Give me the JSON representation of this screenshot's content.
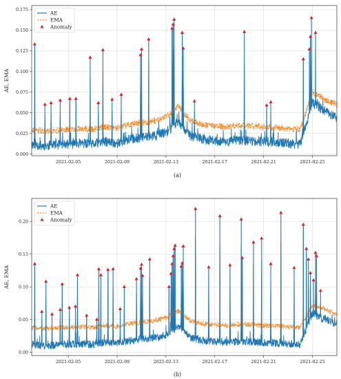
{
  "chart_data": [
    {
      "type": "line",
      "caption": "(a)",
      "ylabel": "AE, EMA",
      "xlabel": "",
      "xlim": [
        "2021-02-02",
        "2021-02-27"
      ],
      "ylim": [
        -0.002,
        0.18
      ],
      "yticks": [
        0.0,
        0.025,
        0.05,
        0.075,
        0.1,
        0.125,
        0.15,
        0.175
      ],
      "ytick_labels": [
        "0.000",
        "0.025",
        "0.050",
        "0.075",
        "0.100",
        "0.125",
        "0.150",
        "0.175"
      ],
      "xticks": [
        "2021-02-05",
        "2021-02-09",
        "2021-02-13",
        "2021-02-17",
        "2021-02-21",
        "2021-02-25"
      ],
      "grid": true,
      "legend": "top-left",
      "colors": {
        "AE": "#1f77b4",
        "EMA": "#ff7f0e",
        "Anomaly": "#d62728"
      },
      "series": [
        {
          "name": "AE",
          "style": "solid",
          "x": [
            "2021-02-02",
            "2021-02-03",
            "2021-02-04",
            "2021-02-05",
            "2021-02-06",
            "2021-02-07",
            "2021-02-08",
            "2021-02-09",
            "2021-02-10",
            "2021-02-11",
            "2021-02-12",
            "2021-02-13",
            "2021-02-14",
            "2021-02-15",
            "2021-02-16",
            "2021-02-17",
            "2021-02-18",
            "2021-02-19",
            "2021-02-20",
            "2021-02-21",
            "2021-02-22",
            "2021-02-23",
            "2021-02-24",
            "2021-02-25",
            "2021-02-26",
            "2021-02-27"
          ],
          "y": [
            0.012,
            0.01,
            0.011,
            0.012,
            0.013,
            0.012,
            0.015,
            0.013,
            0.018,
            0.02,
            0.022,
            0.026,
            0.04,
            0.022,
            0.018,
            0.016,
            0.015,
            0.017,
            0.016,
            0.015,
            0.014,
            0.013,
            0.012,
            0.062,
            0.052,
            0.044
          ]
        },
        {
          "name": "EMA",
          "style": "dashed",
          "x": [
            "2021-02-02",
            "2021-02-03",
            "2021-02-04",
            "2021-02-05",
            "2021-02-06",
            "2021-02-07",
            "2021-02-08",
            "2021-02-09",
            "2021-02-10",
            "2021-02-11",
            "2021-02-12",
            "2021-02-13",
            "2021-02-14",
            "2021-02-15",
            "2021-02-16",
            "2021-02-17",
            "2021-02-18",
            "2021-02-19",
            "2021-02-20",
            "2021-02-21",
            "2021-02-22",
            "2021-02-23",
            "2021-02-24",
            "2021-02-25",
            "2021-02-26",
            "2021-02-27"
          ],
          "y": [
            0.03,
            0.028,
            0.029,
            0.03,
            0.031,
            0.03,
            0.033,
            0.031,
            0.036,
            0.038,
            0.04,
            0.045,
            0.058,
            0.04,
            0.036,
            0.034,
            0.033,
            0.035,
            0.034,
            0.033,
            0.032,
            0.031,
            0.03,
            0.075,
            0.066,
            0.06
          ]
        },
        {
          "name": "Anomaly",
          "style": "marker",
          "points": [
            {
              "x": "2021-02-02 06:00",
              "y": 0.133
            },
            {
              "x": "2021-02-03 02:00",
              "y": 0.06
            },
            {
              "x": "2021-02-03 14:00",
              "y": 0.062
            },
            {
              "x": "2021-02-04 08:00",
              "y": 0.065
            },
            {
              "x": "2021-02-05 03:00",
              "y": 0.067
            },
            {
              "x": "2021-02-05 15:00",
              "y": 0.067
            },
            {
              "x": "2021-02-06 19:00",
              "y": 0.117
            },
            {
              "x": "2021-02-07 11:00",
              "y": 0.062
            },
            {
              "x": "2021-02-07 20:00",
              "y": 0.126
            },
            {
              "x": "2021-02-08 14:00",
              "y": 0.066
            },
            {
              "x": "2021-02-09 08:00",
              "y": 0.072
            },
            {
              "x": "2021-02-10 22:00",
              "y": 0.12
            },
            {
              "x": "2021-02-11 00:00",
              "y": 0.127
            },
            {
              "x": "2021-02-11 14:00",
              "y": 0.139
            },
            {
              "x": "2021-02-13 12:00",
              "y": 0.152
            },
            {
              "x": "2021-02-13 14:00",
              "y": 0.157
            },
            {
              "x": "2021-02-13 16:00",
              "y": 0.163
            },
            {
              "x": "2021-02-14 08:00",
              "y": 0.147
            },
            {
              "x": "2021-02-14 10:00",
              "y": 0.128
            },
            {
              "x": "2021-02-15 08:00",
              "y": 0.064
            },
            {
              "x": "2021-02-19 10:00",
              "y": 0.148
            },
            {
              "x": "2021-02-21 06:00",
              "y": 0.059
            },
            {
              "x": "2021-02-21 14:00",
              "y": 0.063
            },
            {
              "x": "2021-02-24 06:00",
              "y": 0.115
            },
            {
              "x": "2021-02-24 18:00",
              "y": 0.127
            },
            {
              "x": "2021-02-24 20:00",
              "y": 0.142
            },
            {
              "x": "2021-02-24 22:00",
              "y": 0.165
            },
            {
              "x": "2021-02-25 06:00",
              "y": 0.147
            }
          ]
        }
      ]
    },
    {
      "type": "line",
      "caption": "(b)",
      "ylabel": "AE, EMA",
      "xlabel": "",
      "xlim": [
        "2021-02-02",
        "2021-02-27"
      ],
      "ylim": [
        -0.005,
        0.235
      ],
      "yticks": [
        0.0,
        0.05,
        0.1,
        0.15,
        0.2
      ],
      "ytick_labels": [
        "0.00",
        "0.05",
        "0.10",
        "0.15",
        "0.20"
      ],
      "xticks": [
        "2021-02-05",
        "2021-02-09",
        "2021-02-13",
        "2021-02-17",
        "2021-02-21",
        "2021-02-25"
      ],
      "grid": true,
      "legend": "top-left",
      "colors": {
        "AE": "#1f77b4",
        "EMA": "#ff7f0e",
        "Anomaly": "#d62728"
      },
      "series": [
        {
          "name": "AE",
          "style": "solid",
          "x": [
            "2021-02-02",
            "2021-02-03",
            "2021-02-04",
            "2021-02-05",
            "2021-02-06",
            "2021-02-07",
            "2021-02-08",
            "2021-02-09",
            "2021-02-10",
            "2021-02-11",
            "2021-02-12",
            "2021-02-13",
            "2021-02-14",
            "2021-02-15",
            "2021-02-16",
            "2021-02-17",
            "2021-02-18",
            "2021-02-19",
            "2021-02-20",
            "2021-02-21",
            "2021-02-22",
            "2021-02-23",
            "2021-02-24",
            "2021-02-25",
            "2021-02-26",
            "2021-02-27"
          ],
          "y": [
            0.012,
            0.01,
            0.011,
            0.012,
            0.013,
            0.012,
            0.015,
            0.013,
            0.018,
            0.02,
            0.022,
            0.026,
            0.04,
            0.022,
            0.018,
            0.016,
            0.015,
            0.017,
            0.016,
            0.015,
            0.014,
            0.013,
            0.012,
            0.06,
            0.05,
            0.044
          ]
        },
        {
          "name": "EMA",
          "style": "dashed",
          "x": [
            "2021-02-02",
            "2021-02-03",
            "2021-02-04",
            "2021-02-05",
            "2021-02-06",
            "2021-02-07",
            "2021-02-08",
            "2021-02-09",
            "2021-02-10",
            "2021-02-11",
            "2021-02-12",
            "2021-02-13",
            "2021-02-14",
            "2021-02-15",
            "2021-02-16",
            "2021-02-17",
            "2021-02-18",
            "2021-02-19",
            "2021-02-20",
            "2021-02-21",
            "2021-02-22",
            "2021-02-23",
            "2021-02-24",
            "2021-02-25",
            "2021-02-26",
            "2021-02-27"
          ],
          "y": [
            0.038,
            0.036,
            0.037,
            0.038,
            0.039,
            0.038,
            0.041,
            0.039,
            0.044,
            0.046,
            0.048,
            0.053,
            0.063,
            0.048,
            0.044,
            0.042,
            0.041,
            0.043,
            0.042,
            0.041,
            0.04,
            0.039,
            0.038,
            0.072,
            0.066,
            0.058
          ]
        },
        {
          "name": "Anomaly",
          "style": "marker",
          "points": [
            {
              "x": "2021-02-02 06:00",
              "y": 0.135
            },
            {
              "x": "2021-02-02 20:00",
              "y": 0.062
            },
            {
              "x": "2021-02-03 04:00",
              "y": 0.108
            },
            {
              "x": "2021-02-03 16:00",
              "y": 0.058
            },
            {
              "x": "2021-02-04 08:00",
              "y": 0.065
            },
            {
              "x": "2021-02-04 12:00",
              "y": 0.104
            },
            {
              "x": "2021-02-05 02:00",
              "y": 0.068
            },
            {
              "x": "2021-02-05 14:00",
              "y": 0.07
            },
            {
              "x": "2021-02-05 18:00",
              "y": 0.118
            },
            {
              "x": "2021-02-06 12:00",
              "y": 0.056
            },
            {
              "x": "2021-02-07 08:00",
              "y": 0.05
            },
            {
              "x": "2021-02-07 12:00",
              "y": 0.127
            },
            {
              "x": "2021-02-07 16:00",
              "y": 0.118
            },
            {
              "x": "2021-02-08 06:00",
              "y": 0.126
            },
            {
              "x": "2021-02-08 16:00",
              "y": 0.127
            },
            {
              "x": "2021-02-09 06:00",
              "y": 0.066
            },
            {
              "x": "2021-02-09 14:00",
              "y": 0.1
            },
            {
              "x": "2021-02-10 14:00",
              "y": 0.112
            },
            {
              "x": "2021-02-10 22:00",
              "y": 0.128
            },
            {
              "x": "2021-02-11 00:00",
              "y": 0.134
            },
            {
              "x": "2021-02-11 02:00",
              "y": 0.117
            },
            {
              "x": "2021-02-11 16:00",
              "y": 0.142
            },
            {
              "x": "2021-02-13 06:00",
              "y": 0.1
            },
            {
              "x": "2021-02-13 10:00",
              "y": 0.12
            },
            {
              "x": "2021-02-13 12:00",
              "y": 0.135
            },
            {
              "x": "2021-02-13 14:00",
              "y": 0.147
            },
            {
              "x": "2021-02-13 16:00",
              "y": 0.158
            },
            {
              "x": "2021-02-13 18:00",
              "y": 0.163
            },
            {
              "x": "2021-02-14 06:00",
              "y": 0.131
            },
            {
              "x": "2021-02-14 08:00",
              "y": 0.136
            },
            {
              "x": "2021-02-14 10:00",
              "y": 0.162
            },
            {
              "x": "2021-02-15 10:00",
              "y": 0.219
            },
            {
              "x": "2021-02-16 12:00",
              "y": 0.13
            },
            {
              "x": "2021-02-17 10:00",
              "y": 0.208
            },
            {
              "x": "2021-02-18 06:00",
              "y": 0.133
            },
            {
              "x": "2021-02-19 04:00",
              "y": 0.203
            },
            {
              "x": "2021-02-19 06:00",
              "y": 0.144
            },
            {
              "x": "2021-02-20 04:00",
              "y": 0.168
            },
            {
              "x": "2021-02-20 20:00",
              "y": 0.174
            },
            {
              "x": "2021-02-21 14:00",
              "y": 0.135
            },
            {
              "x": "2021-02-22 10:00",
              "y": 0.213
            },
            {
              "x": "2021-02-23 12:00",
              "y": 0.129
            },
            {
              "x": "2021-02-24 06:00",
              "y": 0.195
            },
            {
              "x": "2021-02-24 12:00",
              "y": 0.158
            },
            {
              "x": "2021-02-24 16:00",
              "y": 0.142
            },
            {
              "x": "2021-02-24 20:00",
              "y": 0.121
            },
            {
              "x": "2021-02-25 02:00",
              "y": 0.11
            },
            {
              "x": "2021-02-25 06:00",
              "y": 0.152
            },
            {
              "x": "2021-02-25 08:00",
              "y": 0.147
            },
            {
              "x": "2021-02-25 16:00",
              "y": 0.094
            }
          ]
        }
      ]
    }
  ]
}
